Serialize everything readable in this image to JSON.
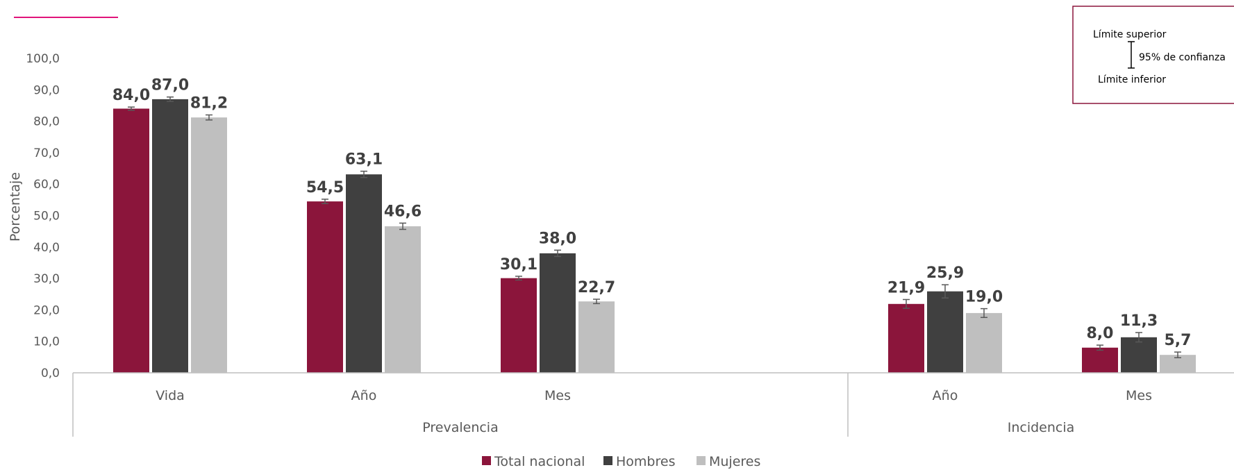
{
  "chart_data": {
    "type": "bar",
    "ylabel": "Porcentaje",
    "ylim": [
      0,
      100
    ],
    "yticks": [
      "0,0",
      "10,0",
      "20,0",
      "30,0",
      "40,0",
      "50,0",
      "60,0",
      "70,0",
      "80,0",
      "90,0",
      "100,0"
    ],
    "grid": false,
    "legend_position": "bottom",
    "groups": [
      {
        "label": "Prevalencia",
        "categories": [
          "Vida",
          "Año",
          "Mes"
        ]
      },
      {
        "label": "Incidencia",
        "categories": [
          "Año",
          "Mes"
        ]
      }
    ],
    "categories": [
      "Vida",
      "Año",
      "Mes",
      "Año",
      "Mes"
    ],
    "series": [
      {
        "name": "Total nacional",
        "color": "#8B153B",
        "values": [
          84.0,
          54.5,
          30.1,
          21.9,
          8.0
        ],
        "labels": [
          "84,0",
          "54,5",
          "30,1",
          "21,9",
          "8,0"
        ],
        "ci_low": [
          83.5,
          53.8,
          29.5,
          20.5,
          7.2
        ],
        "ci_high": [
          84.5,
          55.2,
          30.7,
          23.3,
          8.8
        ]
      },
      {
        "name": "Hombres",
        "color": "#404040",
        "values": [
          87.0,
          63.1,
          38.0,
          25.9,
          11.3
        ],
        "labels": [
          "87,0",
          "63,1",
          "38,0",
          "25,9",
          "11,3"
        ],
        "ci_low": [
          86.3,
          62.1,
          37.0,
          23.8,
          9.8
        ],
        "ci_high": [
          87.7,
          64.1,
          39.0,
          28.0,
          12.8
        ]
      },
      {
        "name": "Mujeres",
        "color": "#BFBFBF",
        "values": [
          81.2,
          46.6,
          22.7,
          19.0,
          5.7
        ],
        "labels": [
          "81,2",
          "46,6",
          "22,7",
          "19,0",
          "5,7"
        ],
        "ci_low": [
          80.4,
          45.6,
          22.0,
          17.6,
          4.8
        ],
        "ci_high": [
          82.0,
          47.6,
          23.4,
          20.4,
          6.6
        ]
      }
    ]
  },
  "ci_legend": {
    "upper": "Límite superior",
    "middle": "95% de confianza",
    "lower": "Límite inferior"
  },
  "colors": {
    "accent": "#E0147A",
    "frame": "#8B153B",
    "axis": "#BFBFBF"
  }
}
